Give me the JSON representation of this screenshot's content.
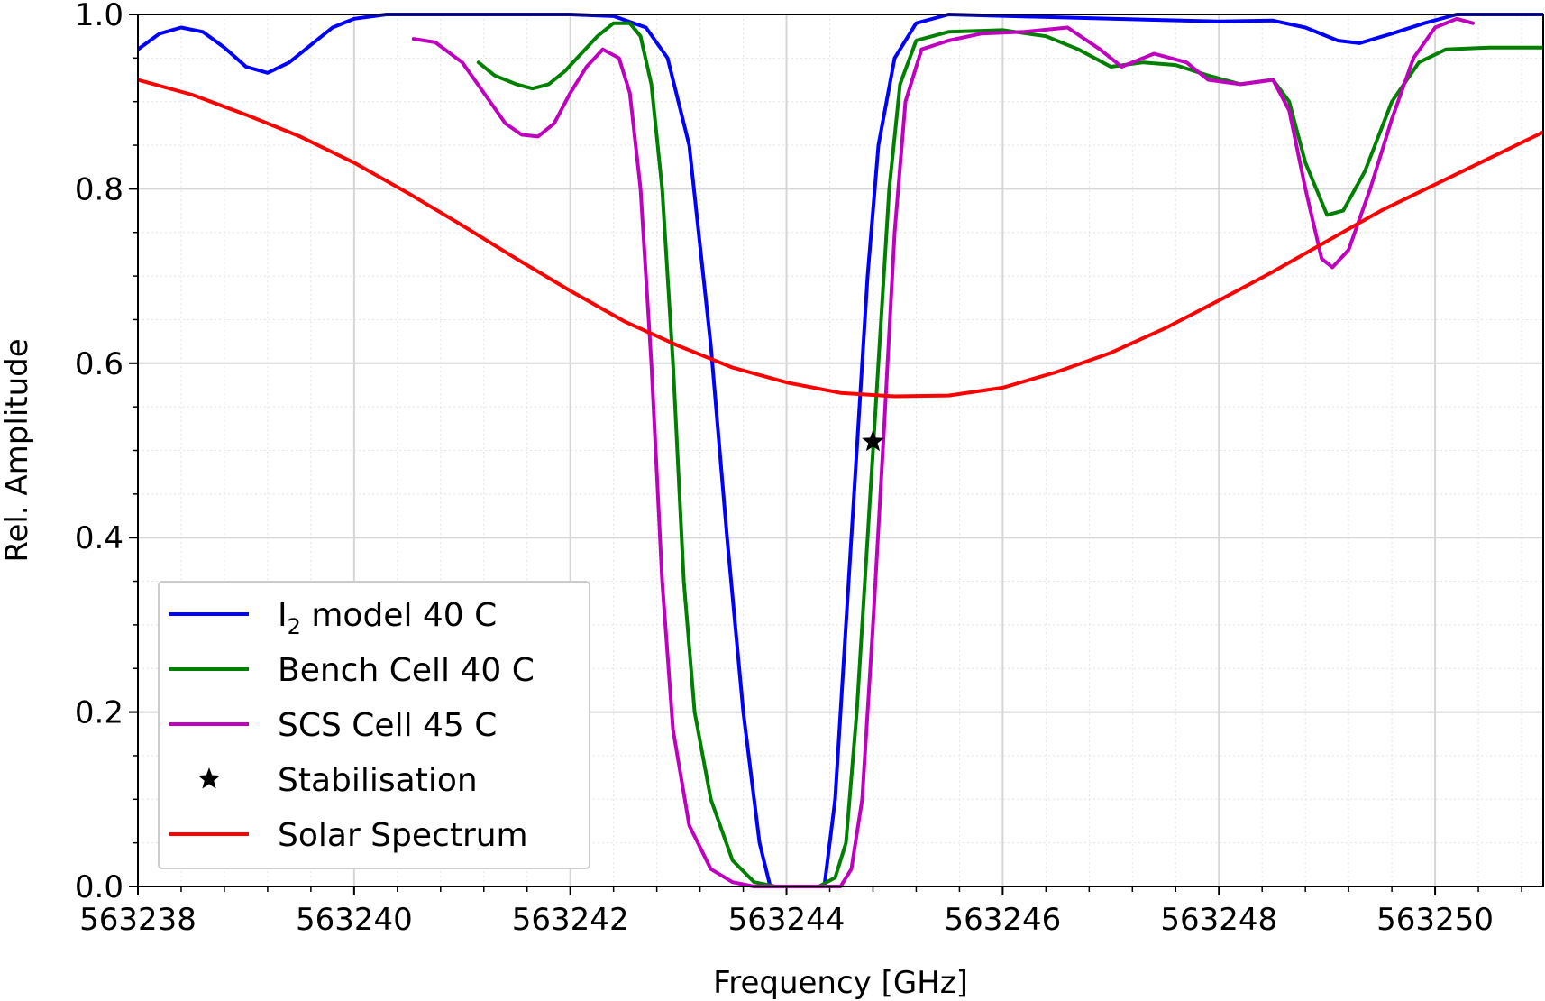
{
  "chart_data": {
    "type": "line",
    "xlabel": "Frequency [GHz]",
    "ylabel": "Rel. Amplitude",
    "xlim": [
      563238,
      563251
    ],
    "ylim": [
      0,
      1
    ],
    "xticks": [
      "563238",
      "563240",
      "563242",
      "563244",
      "563246",
      "563248",
      "563250"
    ],
    "yticks": [
      "0.0",
      "0.2",
      "0.4",
      "0.6",
      "0.8",
      "1.0"
    ],
    "grid": true,
    "legend_placement": "lower-left",
    "series": [
      {
        "name": "I",
        "name_subscript": "2",
        "name_suffix": " model 40 C",
        "color": "#0000ff",
        "points": [
          [
            563238.0,
            0.96
          ],
          [
            563238.2,
            0.978
          ],
          [
            563238.4,
            0.985
          ],
          [
            563238.6,
            0.98
          ],
          [
            563238.8,
            0.962
          ],
          [
            563239.0,
            0.94
          ],
          [
            563239.2,
            0.933
          ],
          [
            563239.4,
            0.945
          ],
          [
            563239.6,
            0.965
          ],
          [
            563239.8,
            0.985
          ],
          [
            563240.0,
            0.995
          ],
          [
            563240.3,
            1.0
          ],
          [
            563241.0,
            1.0
          ],
          [
            563242.0,
            1.0
          ],
          [
            563242.4,
            0.998
          ],
          [
            563242.7,
            0.985
          ],
          [
            563242.9,
            0.95
          ],
          [
            563243.1,
            0.85
          ],
          [
            563243.3,
            0.62
          ],
          [
            563243.45,
            0.4
          ],
          [
            563243.6,
            0.2
          ],
          [
            563243.75,
            0.05
          ],
          [
            563243.85,
            0.0
          ],
          [
            563244.35,
            0.0
          ],
          [
            563244.45,
            0.1
          ],
          [
            563244.55,
            0.3
          ],
          [
            563244.65,
            0.5
          ],
          [
            563244.75,
            0.7
          ],
          [
            563244.85,
            0.85
          ],
          [
            563245.0,
            0.95
          ],
          [
            563245.2,
            0.99
          ],
          [
            563245.5,
            1.0
          ],
          [
            563247.0,
            0.995
          ],
          [
            563248.0,
            0.992
          ],
          [
            563248.5,
            0.993
          ],
          [
            563248.8,
            0.985
          ],
          [
            563249.1,
            0.97
          ],
          [
            563249.3,
            0.967
          ],
          [
            563249.6,
            0.978
          ],
          [
            563249.9,
            0.99
          ],
          [
            563250.2,
            1.0
          ],
          [
            563251.0,
            1.0
          ]
        ]
      },
      {
        "name": "Bench Cell 40 C",
        "color": "#008000",
        "points": [
          [
            563241.15,
            0.945
          ],
          [
            563241.3,
            0.93
          ],
          [
            563241.5,
            0.92
          ],
          [
            563241.65,
            0.915
          ],
          [
            563241.8,
            0.92
          ],
          [
            563241.95,
            0.935
          ],
          [
            563242.1,
            0.955
          ],
          [
            563242.25,
            0.975
          ],
          [
            563242.4,
            0.99
          ],
          [
            563242.55,
            0.99
          ],
          [
            563242.65,
            0.975
          ],
          [
            563242.75,
            0.92
          ],
          [
            563242.85,
            0.8
          ],
          [
            563242.95,
            0.6
          ],
          [
            563243.05,
            0.35
          ],
          [
            563243.15,
            0.2
          ],
          [
            563243.3,
            0.1
          ],
          [
            563243.5,
            0.03
          ],
          [
            563243.7,
            0.005
          ],
          [
            563243.9,
            0.0
          ],
          [
            563244.3,
            0.0
          ],
          [
            563244.45,
            0.01
          ],
          [
            563244.55,
            0.05
          ],
          [
            563244.65,
            0.2
          ],
          [
            563244.75,
            0.4
          ],
          [
            563244.85,
            0.6
          ],
          [
            563244.95,
            0.8
          ],
          [
            563245.05,
            0.92
          ],
          [
            563245.2,
            0.97
          ],
          [
            563245.5,
            0.98
          ],
          [
            563246.0,
            0.982
          ],
          [
            563246.4,
            0.975
          ],
          [
            563246.7,
            0.96
          ],
          [
            563247.0,
            0.94
          ],
          [
            563247.3,
            0.945
          ],
          [
            563247.6,
            0.942
          ],
          [
            563247.9,
            0.93
          ],
          [
            563248.2,
            0.92
          ],
          [
            563248.5,
            0.925
          ],
          [
            563248.65,
            0.9
          ],
          [
            563248.8,
            0.83
          ],
          [
            563249.0,
            0.77
          ],
          [
            563249.15,
            0.775
          ],
          [
            563249.35,
            0.82
          ],
          [
            563249.6,
            0.9
          ],
          [
            563249.85,
            0.945
          ],
          [
            563250.1,
            0.96
          ],
          [
            563250.5,
            0.962
          ],
          [
            563251.0,
            0.962
          ]
        ]
      },
      {
        "name": "SCS Cell 45 C",
        "color": "#bf00bf",
        "points": [
          [
            563240.55,
            0.972
          ],
          [
            563240.75,
            0.968
          ],
          [
            563241.0,
            0.945
          ],
          [
            563241.2,
            0.91
          ],
          [
            563241.4,
            0.875
          ],
          [
            563241.55,
            0.862
          ],
          [
            563241.7,
            0.86
          ],
          [
            563241.85,
            0.875
          ],
          [
            563242.0,
            0.91
          ],
          [
            563242.15,
            0.94
          ],
          [
            563242.3,
            0.96
          ],
          [
            563242.45,
            0.95
          ],
          [
            563242.55,
            0.91
          ],
          [
            563242.65,
            0.8
          ],
          [
            563242.75,
            0.6
          ],
          [
            563242.85,
            0.35
          ],
          [
            563242.95,
            0.18
          ],
          [
            563243.1,
            0.07
          ],
          [
            563243.3,
            0.02
          ],
          [
            563243.5,
            0.005
          ],
          [
            563243.7,
            0.0
          ],
          [
            563244.5,
            0.0
          ],
          [
            563244.6,
            0.02
          ],
          [
            563244.7,
            0.1
          ],
          [
            563244.8,
            0.3
          ],
          [
            563244.9,
            0.52
          ],
          [
            563245.0,
            0.75
          ],
          [
            563245.1,
            0.9
          ],
          [
            563245.25,
            0.96
          ],
          [
            563245.5,
            0.97
          ],
          [
            563245.8,
            0.978
          ],
          [
            563246.2,
            0.98
          ],
          [
            563246.6,
            0.985
          ],
          [
            563246.9,
            0.96
          ],
          [
            563247.1,
            0.94
          ],
          [
            563247.4,
            0.955
          ],
          [
            563247.7,
            0.945
          ],
          [
            563247.9,
            0.925
          ],
          [
            563248.2,
            0.92
          ],
          [
            563248.5,
            0.925
          ],
          [
            563248.65,
            0.89
          ],
          [
            563248.8,
            0.8
          ],
          [
            563248.95,
            0.72
          ],
          [
            563249.05,
            0.71
          ],
          [
            563249.2,
            0.73
          ],
          [
            563249.4,
            0.8
          ],
          [
            563249.6,
            0.88
          ],
          [
            563249.8,
            0.95
          ],
          [
            563250.0,
            0.985
          ],
          [
            563250.2,
            0.995
          ],
          [
            563250.35,
            0.99
          ]
        ]
      },
      {
        "name": "Solar Spectrum",
        "color": "#ff0000",
        "points": [
          [
            563238.0,
            0.925
          ],
          [
            563238.5,
            0.908
          ],
          [
            563239.0,
            0.885
          ],
          [
            563239.5,
            0.86
          ],
          [
            563240.0,
            0.83
          ],
          [
            563240.5,
            0.795
          ],
          [
            563241.0,
            0.758
          ],
          [
            563241.5,
            0.72
          ],
          [
            563242.0,
            0.683
          ],
          [
            563242.5,
            0.648
          ],
          [
            563243.0,
            0.62
          ],
          [
            563243.5,
            0.595
          ],
          [
            563244.0,
            0.578
          ],
          [
            563244.5,
            0.566
          ],
          [
            563245.0,
            0.562
          ],
          [
            563245.5,
            0.563
          ],
          [
            563246.0,
            0.572
          ],
          [
            563246.5,
            0.59
          ],
          [
            563247.0,
            0.612
          ],
          [
            563247.5,
            0.64
          ],
          [
            563248.0,
            0.672
          ],
          [
            563248.5,
            0.705
          ],
          [
            563249.0,
            0.74
          ],
          [
            563249.5,
            0.775
          ],
          [
            563250.0,
            0.805
          ],
          [
            563250.5,
            0.835
          ],
          [
            563251.0,
            0.865
          ]
        ]
      }
    ],
    "markers": [
      {
        "name": "Stabilisation",
        "symbol": "star",
        "color": "#000000",
        "x": 563244.8,
        "y": 0.51
      }
    ]
  }
}
